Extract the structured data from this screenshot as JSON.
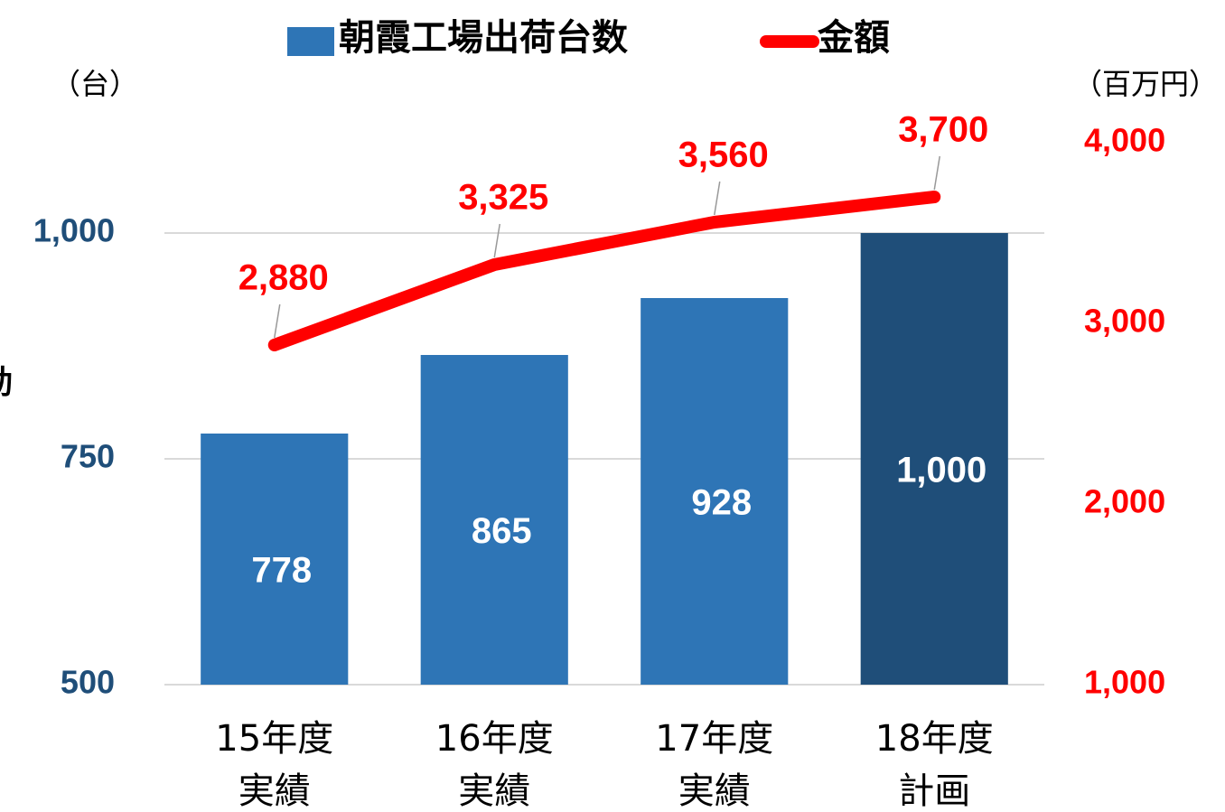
{
  "chart_data": {
    "type": "bar_line",
    "ylabel": "動",
    "y_unit": "（台）",
    "y2_unit": "（百万円）",
    "categories": [
      "15年度\n実績",
      "16年度\n実績",
      "17年度\n実績",
      "18年度\n計画"
    ],
    "series": [
      {
        "name": "朝霞工場出荷台数",
        "type": "bar",
        "color": "#2e75b6",
        "colors": [
          "#2e75b6",
          "#2e75b6",
          "#2e75b6",
          "#1f4e79"
        ],
        "values": [
          778,
          865,
          928,
          1000
        ],
        "value_labels": [
          "778",
          "865",
          "928",
          "1,000"
        ]
      },
      {
        "name": "金額",
        "type": "line",
        "axis": "y2",
        "color": "#ff0000",
        "values": [
          2880,
          3325,
          3560,
          3700
        ],
        "value_labels": [
          "2,880",
          "3,325",
          "3,560",
          "3,700"
        ]
      }
    ],
    "ylim": [
      500,
      1100
    ],
    "yticks": [
      500,
      750,
      {
        "value": 1000,
        "label": "1,000"
      }
    ],
    "y2lim": [
      1000,
      4000
    ],
    "y2ticks": [
      {
        "value": 1000,
        "label": "1,000"
      },
      {
        "value": 2000,
        "label": "2,000"
      },
      {
        "value": 3000,
        "label": "3,000"
      },
      {
        "value": 4000,
        "label": "4,000"
      }
    ],
    "grid": true,
    "legend": "top"
  }
}
